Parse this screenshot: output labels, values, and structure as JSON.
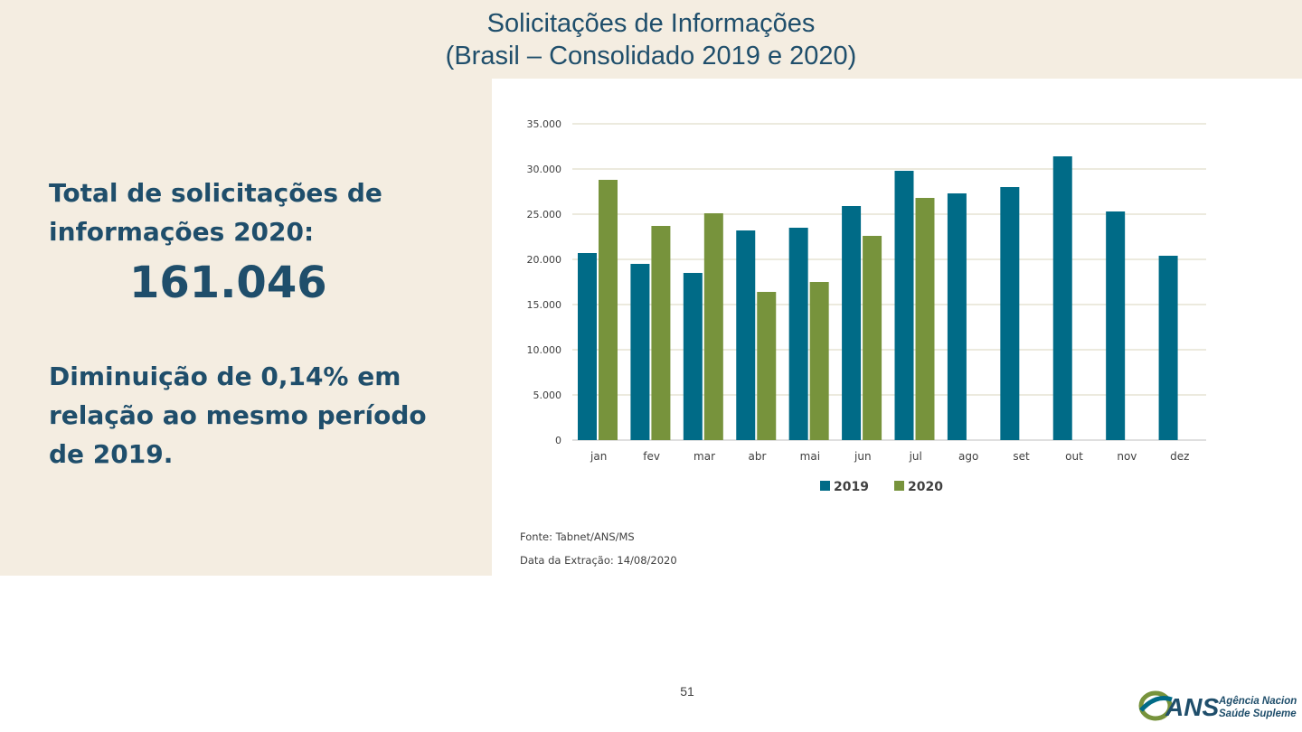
{
  "title": {
    "line1": "Solicitações de Informações",
    "line2": "(Brasil – Consolidado 2019 e 2020)"
  },
  "summary": {
    "total_label": "Total de solicitações de informações 2020:",
    "total_value": "161.046",
    "change_text": "Diminuição de 0,14% em relação ao mesmo período de 2019."
  },
  "source": {
    "fonte": "Fonte: Tabnet/ANS/MS",
    "data_extracao": "Data da Extração: 14/08/2020"
  },
  "page_number": "51",
  "logo": {
    "brand": "ANS",
    "line1": "Agência Nacional de",
    "line2": "Saúde Suplementar"
  },
  "colors": {
    "background_band": "#f4ede1",
    "title_text": "#1f4e6b",
    "series_2019": "#006b87",
    "series_2020": "#77933c",
    "grid": "#d9d6bd"
  },
  "chart_data": {
    "type": "bar",
    "categories": [
      "jan",
      "fev",
      "mar",
      "abr",
      "mai",
      "jun",
      "jul",
      "ago",
      "set",
      "out",
      "nov",
      "dez"
    ],
    "series": [
      {
        "name": "2019",
        "color": "#006b87",
        "values": [
          20700,
          19500,
          18500,
          23200,
          23500,
          25900,
          29800,
          27300,
          28000,
          31400,
          25300,
          20400
        ]
      },
      {
        "name": "2020",
        "color": "#77933c",
        "values": [
          28800,
          23700,
          25100,
          16400,
          17500,
          22600,
          26800,
          null,
          null,
          null,
          null,
          null
        ]
      }
    ],
    "ylim": [
      0,
      35000
    ],
    "yticks": [
      0,
      5000,
      10000,
      15000,
      20000,
      25000,
      30000,
      35000
    ],
    "ytick_labels": [
      "0",
      "5.000",
      "10.000",
      "15.000",
      "20.000",
      "25.000",
      "30.000",
      "35.000"
    ],
    "grid": true,
    "legend_position": "bottom"
  }
}
